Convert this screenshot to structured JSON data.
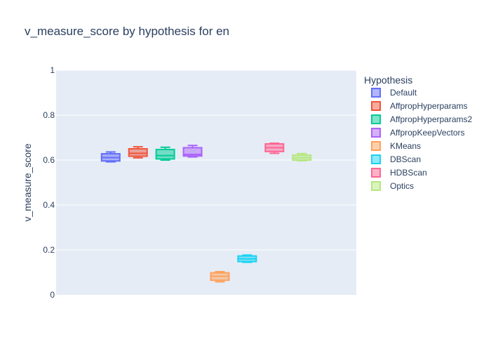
{
  "chart_data": {
    "type": "box",
    "title": "v_measure_score by hypothesis for en",
    "xlabel": "",
    "ylabel": "v_measure_score",
    "ylim": [
      0,
      1
    ],
    "yticks": [
      "0",
      "0.2",
      "0.4",
      "0.6",
      "0.8",
      "1"
    ],
    "ytick_values": [
      0,
      0.2,
      0.4,
      0.6,
      0.8,
      1
    ],
    "grid": true,
    "legend_title": "Hypothesis",
    "legend_position": "right",
    "series": [
      {
        "name": "Default",
        "color": "#636efa",
        "min": 0.592,
        "q1": 0.596,
        "median": 0.611,
        "q3": 0.628,
        "max": 0.636
      },
      {
        "name": "AffpropHyperparams",
        "color": "#ef553b",
        "min": 0.61,
        "q1": 0.617,
        "median": 0.63,
        "q3": 0.65,
        "max": 0.659
      },
      {
        "name": "AffpropHyperparams2",
        "color": "#00cc96",
        "min": 0.6,
        "q1": 0.605,
        "median": 0.62,
        "q3": 0.647,
        "max": 0.657
      },
      {
        "name": "AffpropKeepVectors",
        "color": "#ab63fa",
        "min": 0.614,
        "q1": 0.618,
        "median": 0.625,
        "q3": 0.655,
        "max": 0.665
      },
      {
        "name": "KMeans",
        "color": "#ffa15a",
        "min": 0.058,
        "q1": 0.065,
        "median": 0.083,
        "q3": 0.098,
        "max": 0.103
      },
      {
        "name": "DBScan",
        "color": "#19d3f3",
        "min": 0.145,
        "q1": 0.148,
        "median": 0.16,
        "q3": 0.173,
        "max": 0.177
      },
      {
        "name": "HDBScan",
        "color": "#ff6692",
        "min": 0.63,
        "q1": 0.638,
        "median": 0.655,
        "q3": 0.672,
        "max": 0.675
      },
      {
        "name": "Optics",
        "color": "#b6e880",
        "min": 0.597,
        "q1": 0.6,
        "median": 0.61,
        "q3": 0.622,
        "max": 0.629
      }
    ]
  }
}
